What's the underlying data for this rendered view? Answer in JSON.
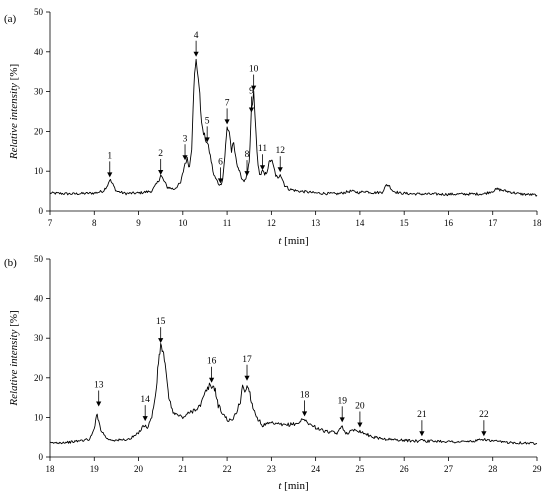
{
  "chart_data": [
    {
      "type": "line",
      "panel_label": "(a)",
      "xlabel_var": "t",
      "xlabel_unit": " [min]",
      "ylabel_var": "Relative intensity",
      "ylabel_unit": " [%]",
      "xlim": [
        7,
        18
      ],
      "ylim": [
        0,
        50
      ],
      "x_ticks": [
        7,
        8,
        9,
        10,
        11,
        12,
        13,
        14,
        15,
        16,
        17,
        18
      ],
      "y_ticks": [
        0,
        10,
        20,
        30,
        40,
        50
      ],
      "series": [
        {
          "x": [
            7.0,
            7.5,
            8.0,
            8.2,
            8.3,
            8.35,
            8.4,
            8.5,
            8.7,
            9.0,
            9.3,
            9.45,
            9.5,
            9.55,
            9.65,
            9.8,
            9.95,
            10.05,
            10.1,
            10.15,
            10.2,
            10.25,
            10.3,
            10.35,
            10.4,
            10.45,
            10.55,
            10.6,
            10.7,
            10.8,
            10.85,
            10.9,
            10.95,
            11.0,
            11.05,
            11.1,
            11.15,
            11.2,
            11.25,
            11.3,
            11.35,
            11.4,
            11.45,
            11.5,
            11.55,
            11.6,
            11.65,
            11.7,
            11.75,
            11.8,
            11.85,
            11.9,
            11.95,
            12.0,
            12.05,
            12.1,
            12.15,
            12.2,
            12.25,
            12.3,
            12.4,
            12.6,
            12.8,
            13.0,
            13.5,
            13.8,
            14.0,
            14.1,
            14.3,
            14.5,
            14.6,
            14.65,
            14.75,
            14.9,
            15.2,
            16.0,
            16.8,
            17.0,
            17.1,
            17.3,
            17.6,
            18.0
          ],
          "y": [
            4.5,
            4.3,
            4.5,
            5.0,
            6.5,
            8.0,
            7.0,
            5.0,
            4.4,
            4.5,
            5.0,
            7.5,
            9.0,
            8.0,
            6.0,
            5.5,
            7.0,
            12.0,
            13.0,
            11.0,
            16.0,
            32.0,
            37.5,
            34.0,
            26.0,
            20.0,
            17.0,
            15.0,
            9.0,
            7.0,
            6.5,
            8.0,
            14.0,
            21.0,
            20.0,
            15.0,
            17.0,
            13.0,
            11.0,
            9.0,
            8.0,
            7.5,
            9.0,
            12.0,
            25.0,
            29.5,
            20.0,
            11.0,
            9.0,
            10.0,
            9.0,
            10.0,
            12.0,
            13.0,
            11.0,
            9.0,
            8.0,
            9.5,
            8.0,
            6.5,
            5.5,
            5.0,
            4.8,
            4.5,
            4.3,
            5.0,
            4.6,
            5.0,
            4.6,
            4.7,
            6.5,
            6.5,
            5.0,
            4.5,
            4.3,
            4.2,
            4.3,
            5.0,
            5.5,
            5.0,
            4.3,
            4.0
          ]
        }
      ],
      "peaks": [
        {
          "label": "1",
          "x": 8.35,
          "tip": 8.2
        },
        {
          "label": "2",
          "x": 9.5,
          "tip": 8.8
        },
        {
          "label": "3",
          "x": 10.05,
          "tip": 12.5
        },
        {
          "label": "4",
          "x": 10.3,
          "tip": 38.5
        },
        {
          "label": "5",
          "x": 10.55,
          "tip": 17.0
        },
        {
          "label": "6",
          "x": 10.85,
          "tip": 6.7
        },
        {
          "label": "7",
          "x": 11.0,
          "tip": 21.5
        },
        {
          "label": "8",
          "x": 11.45,
          "tip": 8.5
        },
        {
          "label": "9",
          "x": 11.55,
          "tip": 24.5
        },
        {
          "label": "10",
          "x": 11.6,
          "tip": 30.0
        },
        {
          "label": "11",
          "x": 11.8,
          "tip": 10.0
        },
        {
          "label": "12",
          "x": 12.2,
          "tip": 9.5
        }
      ]
    },
    {
      "type": "line",
      "panel_label": "(b)",
      "xlabel_var": "t",
      "xlabel_unit": " [min]",
      "ylabel_var": "Relative intensity",
      "ylabel_unit": " [%]",
      "xlim": [
        18,
        29
      ],
      "ylim": [
        0,
        50
      ],
      "x_ticks": [
        18,
        19,
        20,
        21,
        22,
        23,
        24,
        25,
        26,
        27,
        28,
        29
      ],
      "y_ticks": [
        0,
        10,
        20,
        30,
        40,
        50
      ],
      "series": [
        {
          "x": [
            18.0,
            18.5,
            18.9,
            19.0,
            19.05,
            19.1,
            19.15,
            19.2,
            19.3,
            19.5,
            19.8,
            20.0,
            20.1,
            20.2,
            20.3,
            20.4,
            20.45,
            20.5,
            20.55,
            20.6,
            20.65,
            20.7,
            20.8,
            21.0,
            21.2,
            21.4,
            21.5,
            21.6,
            21.65,
            21.7,
            21.75,
            21.8,
            21.9,
            22.0,
            22.1,
            22.2,
            22.3,
            22.35,
            22.4,
            22.45,
            22.5,
            22.55,
            22.6,
            22.7,
            22.8,
            23.0,
            23.3,
            23.6,
            23.7,
            23.8,
            23.9,
            24.0,
            24.2,
            24.5,
            24.6,
            24.65,
            24.7,
            24.8,
            24.9,
            25.0,
            25.1,
            25.3,
            25.6,
            26.0,
            26.3,
            26.4,
            26.5,
            26.8,
            27.2,
            27.6,
            27.8,
            27.9,
            28.0,
            28.3,
            28.6,
            29.0
          ],
          "y": [
            3.5,
            3.8,
            4.5,
            7.0,
            11.0,
            9.0,
            7.0,
            6.0,
            4.5,
            4.2,
            4.5,
            6.0,
            8.0,
            7.5,
            10.0,
            17.0,
            24.0,
            28.0,
            27.0,
            23.0,
            18.0,
            14.0,
            11.0,
            10.0,
            11.5,
            13.0,
            16.0,
            18.0,
            17.5,
            18.0,
            16.0,
            13.0,
            11.0,
            9.5,
            9.0,
            11.0,
            14.0,
            18.5,
            16.0,
            18.0,
            17.0,
            14.0,
            12.0,
            9.5,
            8.0,
            8.5,
            8.0,
            8.5,
            9.5,
            9.0,
            8.0,
            7.5,
            6.5,
            6.0,
            8.0,
            6.5,
            6.0,
            6.5,
            7.0,
            6.5,
            6.0,
            5.0,
            4.5,
            4.2,
            4.0,
            4.5,
            4.0,
            4.0,
            3.8,
            4.0,
            4.5,
            4.2,
            4.0,
            3.7,
            3.6,
            3.4
          ]
        }
      ],
      "peaks": [
        {
          "label": "13",
          "x": 19.1,
          "tip": 12.5
        },
        {
          "label": "14",
          "x": 20.15,
          "tip": 8.8
        },
        {
          "label": "15",
          "x": 20.5,
          "tip": 28.5
        },
        {
          "label": "16",
          "x": 21.65,
          "tip": 18.5
        },
        {
          "label": "17",
          "x": 22.45,
          "tip": 19.0
        },
        {
          "label": "18",
          "x": 23.75,
          "tip": 10.0
        },
        {
          "label": "19",
          "x": 24.6,
          "tip": 8.5
        },
        {
          "label": "20",
          "x": 25.0,
          "tip": 7.2
        },
        {
          "label": "21",
          "x": 26.4,
          "tip": 5.0
        },
        {
          "label": "22",
          "x": 27.8,
          "tip": 5.0
        }
      ]
    }
  ]
}
